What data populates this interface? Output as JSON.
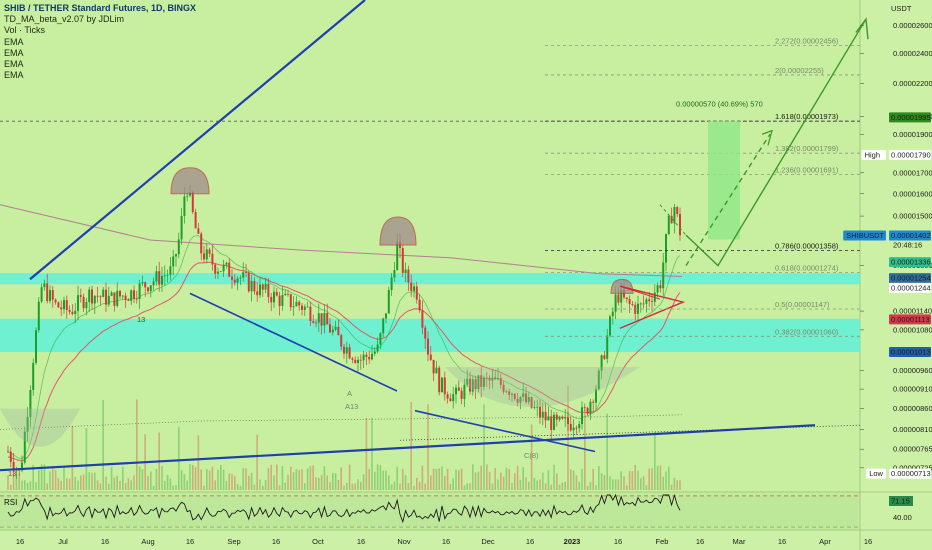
{
  "legend": {
    "title": "SHIB / TETHER Standard Futures, 1D, BINGX",
    "indicators": [
      "TD_MA_beta_v2.07 by JDLim",
      "Vol · Ticks",
      "EMA",
      "EMA",
      "EMA",
      "EMA"
    ]
  },
  "currency": "USDT",
  "rsi": {
    "label": "RSI",
    "value": "71.15",
    "level": "40.00"
  },
  "tag_labels": {
    "high": "High",
    "low": "Low",
    "symbol": "SHIBUSDT",
    "countdown": "20:48:16"
  },
  "colors": {
    "background": "#cdf0a7",
    "zone": "#5ff0d8",
    "trendline": "#1f3fb0",
    "projection": "#3a9a2a",
    "candle_up": "#1e9e28",
    "candle_down": "#d23a3a",
    "ema_red": "#e05a6a",
    "ema_grey": "#b08090",
    "price_tag": "#1f8ad0",
    "target_box": "#8ee888",
    "fib_line": "#8a9a7a"
  },
  "chart_data": {
    "type": "candlestick",
    "title": "SHIB / TETHER Standard Futures, 1D, BINGX",
    "ylabel": "USDT",
    "y_scale": "log",
    "ylim": [
      6.8e-06,
      2.8e-05
    ],
    "x_ticks": [
      "16",
      "Jul",
      "16",
      "Aug",
      "16",
      "Sep",
      "16",
      "Oct",
      "16",
      "Nov",
      "16",
      "Dec",
      "16",
      "2023",
      "16",
      "Feb",
      "16",
      "Mar",
      "16",
      "Apr",
      "16"
    ],
    "y_ticks": [
      "0.00002600",
      "0.00002400",
      "0.00002200",
      "0.00002000",
      "0.00001900",
      "0.00001700",
      "0.00001600",
      "0.00001500",
      "0.00001300",
      "0.00001140",
      "0.00001080",
      "0.00000960",
      "0.00000910",
      "0.00000860",
      "0.00000810",
      "0.00000765",
      "0.00000725"
    ],
    "price_tags": [
      {
        "label": "",
        "value": "0.00001995",
        "color": "#2d8a1e"
      },
      {
        "label": "High",
        "value": "0.00001790",
        "color": "#ffffff"
      },
      {
        "label": "SHIBUSDT",
        "value": "0.00001402",
        "color": "#1f8ad0"
      },
      {
        "label": "",
        "value": "0.00001336",
        "color": "#2ec08e"
      },
      {
        "label": "",
        "value": "0.00001254",
        "color": "#2f6f98"
      },
      {
        "label": "",
        "value": "0.00001244",
        "color": "#ffffff"
      },
      {
        "label": "",
        "value": "0.00001113",
        "color": "#d23a4a"
      },
      {
        "label": "",
        "value": "0.00001013",
        "color": "#1f5fb0"
      },
      {
        "label": "Low",
        "value": "0.00000713",
        "color": "#ffffff"
      }
    ],
    "fib_levels": [
      {
        "label": "2.272(0.00002456)",
        "value": 2.456e-05
      },
      {
        "label": "2(0.00002255)",
        "value": 2.255e-05
      },
      {
        "label": "1.618(0.00001973)",
        "value": 1.973e-05
      },
      {
        "label": "1.382(0.00001799)",
        "value": 1.799e-05
      },
      {
        "label": "1.236(0.00001691)",
        "value": 1.691e-05
      },
      {
        "label": "0.786(0.00001358)",
        "value": 1.358e-05
      },
      {
        "label": "0.618(0.00001274)",
        "value": 1.274e-05
      },
      {
        "label": "0.5(0.00001147)",
        "value": 1.147e-05
      },
      {
        "label": "0.382(0.00001060)",
        "value": 1.06e-05
      }
    ],
    "target_label": "0.00000570 (40.69%) 570",
    "annotations": [
      "13",
      "13",
      "A",
      "A13",
      "C(8)"
    ],
    "last_price": 1.402e-05,
    "high": 1.79e-05,
    "low": 7.13e-06
  }
}
